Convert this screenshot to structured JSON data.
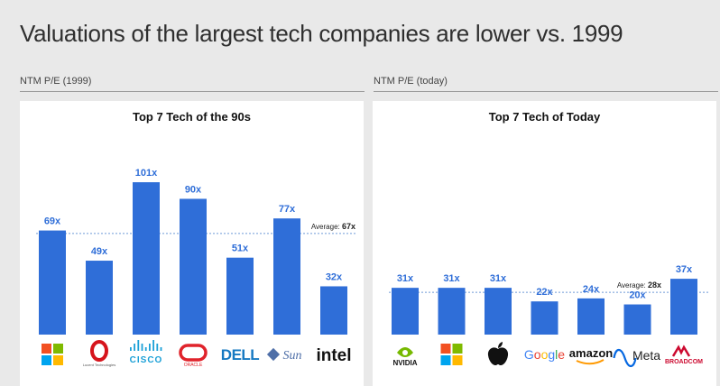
{
  "page": {
    "title": "Valuations of the largest tech companies are lower vs. 1999"
  },
  "colors": {
    "bar": "#2f6ed8",
    "label": "#2f6ed8",
    "avg_line": "#6f9ad8"
  },
  "chart_data": [
    {
      "type": "bar",
      "section_label": "NTM P/E (1999)",
      "title": "Top 7 Tech of the 90s",
      "categories": [
        "Microsoft",
        "Lucent Technologies",
        "Cisco",
        "Oracle",
        "Dell",
        "Sun",
        "Intel"
      ],
      "values": [
        69,
        49,
        101,
        90,
        51,
        77,
        32
      ],
      "value_labels": [
        "69x",
        "49x",
        "101x",
        "90x",
        "51x",
        "77x",
        "32x"
      ],
      "logo_texts": [
        "",
        "Lucent Technologies",
        "CISCO",
        "ORACLE",
        "DELL",
        "Sun",
        "intel"
      ],
      "average": {
        "label": "Average:",
        "value": 67,
        "value_label": "67x"
      },
      "ylim": [
        0,
        110
      ]
    },
    {
      "type": "bar",
      "section_label": "NTM P/E (today)",
      "title": "Top 7 Tech of Today",
      "categories": [
        "NVIDIA",
        "Microsoft",
        "Apple",
        "Google",
        "Amazon",
        "Meta",
        "Broadcom"
      ],
      "values": [
        31,
        31,
        31,
        22,
        24,
        20,
        37
      ],
      "value_labels": [
        "31x",
        "31x",
        "31x",
        "22x",
        "24x",
        "20x",
        "37x"
      ],
      "logo_texts": [
        "NVIDIA",
        "",
        "",
        "Google",
        "amazon",
        "Meta",
        "BROADCOM"
      ],
      "average": {
        "label": "Average:",
        "value": 28,
        "value_label": "28x"
      },
      "ylim": [
        0,
        110
      ]
    }
  ]
}
